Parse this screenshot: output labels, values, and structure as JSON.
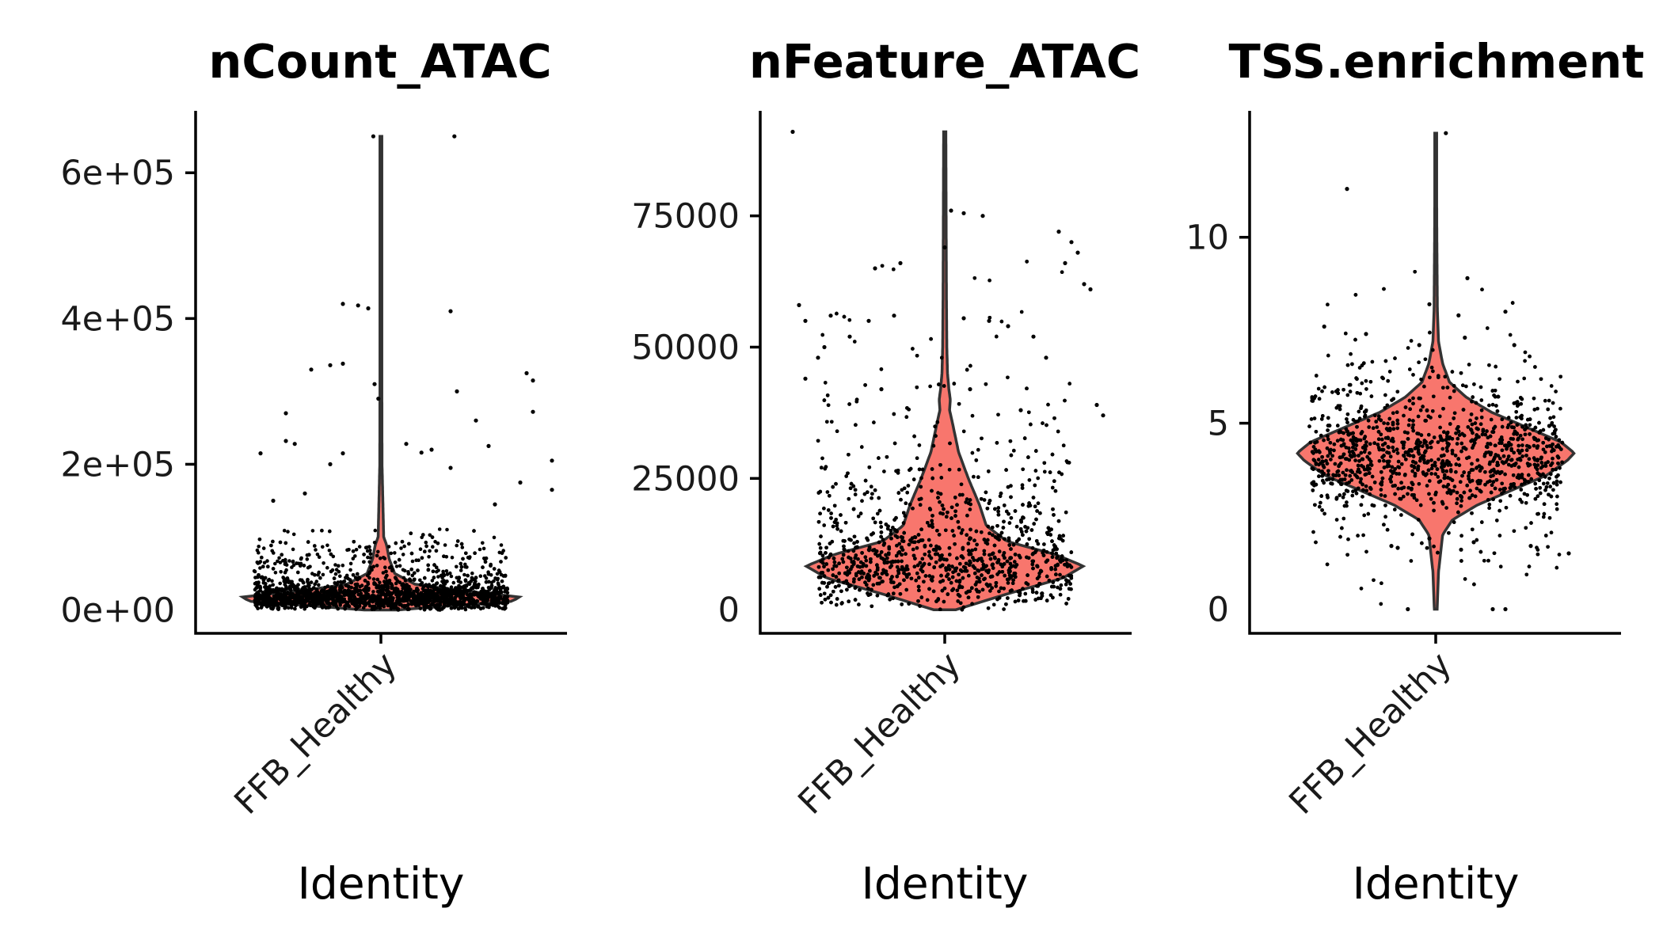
{
  "chart_data": [
    {
      "type": "violin",
      "title": "nCount_ATAC",
      "xlabel": "Identity",
      "ylabel": "",
      "categories": [
        "FFB_Healthy"
      ],
      "ylim": [
        -32000,
        685000
      ],
      "yticks": [
        0,
        200000,
        400000,
        600000
      ],
      "ytick_labels": [
        "0e+00",
        "2e+05",
        "4e+05",
        "6e+05"
      ],
      "fill_color": "#F8766D",
      "summary": {
        "min": 0,
        "median": 18000,
        "mode": 18000,
        "max": 650000
      },
      "density_profile": [
        [
          0,
          0.12
        ],
        [
          5000,
          0.45
        ],
        [
          12000,
          0.95
        ],
        [
          18000,
          1.0
        ],
        [
          26000,
          0.6
        ],
        [
          35000,
          0.25
        ],
        [
          50000,
          0.1
        ],
        [
          70000,
          0.06
        ],
        [
          90000,
          0.04
        ],
        [
          100000,
          0.02
        ],
        [
          200000,
          0.008
        ],
        [
          400000,
          0.006
        ],
        [
          650000,
          0.004
        ]
      ],
      "outlier_points": [
        [
          -0.06,
          650000
        ],
        [
          0.58,
          650000
        ],
        [
          -0.3,
          420000
        ],
        [
          -0.18,
          418000
        ],
        [
          -0.1,
          414000
        ],
        [
          0.55,
          410000
        ],
        [
          -0.55,
          330000
        ],
        [
          -0.3,
          338000
        ],
        [
          -0.4,
          336000
        ],
        [
          1.15,
          325000
        ],
        [
          1.2,
          315000
        ],
        [
          0.6,
          300000
        ],
        [
          -0.05,
          310000
        ],
        [
          -0.02,
          290000
        ],
        [
          0.75,
          260000
        ],
        [
          -0.75,
          270000
        ],
        [
          1.2,
          272000
        ],
        [
          -0.95,
          215000
        ],
        [
          -0.75,
          232000
        ],
        [
          -0.68,
          228000
        ],
        [
          0.85,
          225000
        ],
        [
          1.35,
          205000
        ],
        [
          0.4,
          220000
        ],
        [
          0.32,
          216000
        ],
        [
          0.2,
          228000
        ],
        [
          -0.4,
          200000
        ],
        [
          -0.3,
          215000
        ],
        [
          -0.85,
          150000
        ],
        [
          1.1,
          175000
        ],
        [
          0.55,
          195000
        ],
        [
          1.35,
          165000
        ],
        [
          0.9,
          145000
        ],
        [
          -0.6,
          160000
        ]
      ]
    },
    {
      "type": "violin",
      "title": "nFeature_ATAC",
      "xlabel": "Identity",
      "ylabel": "",
      "categories": [
        "FFB_Healthy"
      ],
      "ylim": [
        -4500,
        95000
      ],
      "yticks": [
        0,
        25000,
        50000,
        75000
      ],
      "ytick_labels": [
        "0",
        "25000",
        "50000",
        "75000"
      ],
      "fill_color": "#F8766D",
      "summary": {
        "min": 0,
        "median": 8500,
        "mode": 8300,
        "max": 91000
      },
      "density_profile": [
        [
          0,
          0.08
        ],
        [
          3000,
          0.45
        ],
        [
          6000,
          0.85
        ],
        [
          8300,
          1.0
        ],
        [
          10500,
          0.8
        ],
        [
          13000,
          0.45
        ],
        [
          16000,
          0.3
        ],
        [
          20000,
          0.25
        ],
        [
          25000,
          0.17
        ],
        [
          30000,
          0.1
        ],
        [
          35000,
          0.06
        ],
        [
          38000,
          0.035
        ],
        [
          40000,
          0.04
        ],
        [
          42000,
          0.03
        ],
        [
          45000,
          0.02
        ],
        [
          50000,
          0.015
        ],
        [
          60000,
          0.012
        ],
        [
          75000,
          0.01
        ],
        [
          91000,
          0.008
        ]
      ],
      "outlier_points": [
        [
          -1.2,
          91000
        ],
        [
          0.05,
          76000
        ],
        [
          0.15,
          75500
        ],
        [
          0.3,
          75000
        ],
        [
          0.0,
          69000
        ],
        [
          0.9,
          72000
        ],
        [
          1.0,
          70000
        ],
        [
          1.05,
          68000
        ],
        [
          0.95,
          66000
        ],
        [
          1.1,
          62000
        ],
        [
          1.15,
          61000
        ],
        [
          -0.55,
          65000
        ],
        [
          -0.35,
          66000
        ],
        [
          -0.9,
          56000
        ],
        [
          -1.15,
          58000
        ],
        [
          -1.1,
          55000
        ],
        [
          -0.6,
          55000
        ],
        [
          -0.4,
          56000
        ],
        [
          0.15,
          55500
        ],
        [
          0.35,
          55000
        ],
        [
          0.5,
          54000
        ],
        [
          -0.75,
          52000
        ],
        [
          -0.95,
          50000
        ],
        [
          -1.0,
          48000
        ],
        [
          0.7,
          52000
        ],
        [
          0.8,
          48000
        ],
        [
          -1.1,
          44000
        ],
        [
          1.2,
          39000
        ],
        [
          1.25,
          37000
        ],
        [
          -0.5,
          42000
        ],
        [
          0.2,
          42000
        ],
        [
          0.6,
          38000
        ]
      ]
    },
    {
      "type": "violin",
      "title": "TSS.enrichment",
      "xlabel": "Identity",
      "ylabel": "",
      "categories": [
        "FFB_Healthy"
      ],
      "ylim": [
        -0.65,
        13.4
      ],
      "yticks": [
        0,
        5,
        10
      ],
      "ytick_labels": [
        "0",
        "5",
        "10"
      ],
      "fill_color": "#F8766D",
      "summary": {
        "min": 0,
        "median": 4.2,
        "mode": 4.2,
        "max": 12.8
      },
      "density_profile": [
        [
          0,
          0.01
        ],
        [
          1,
          0.02
        ],
        [
          2,
          0.05
        ],
        [
          2.4,
          0.12
        ],
        [
          2.8,
          0.3
        ],
        [
          3.2,
          0.55
        ],
        [
          3.6,
          0.8
        ],
        [
          4,
          0.95
        ],
        [
          4.2,
          1.0
        ],
        [
          4.5,
          0.9
        ],
        [
          4.9,
          0.65
        ],
        [
          5.3,
          0.4
        ],
        [
          5.7,
          0.22
        ],
        [
          6.1,
          0.1
        ],
        [
          6.6,
          0.05
        ],
        [
          7.2,
          0.02
        ],
        [
          8,
          0.012
        ],
        [
          10,
          0.008
        ],
        [
          12.8,
          0.005
        ]
      ],
      "outlier_points": [
        [
          0.08,
          12.8
        ],
        [
          -0.7,
          11.3
        ],
        [
          0.25,
          8.9
        ],
        [
          0.55,
          8.0
        ],
        [
          0.18,
          7.9
        ],
        [
          0.23,
          7.3
        ],
        [
          -0.55,
          7.4
        ],
        [
          -0.13,
          7.1
        ],
        [
          -0.05,
          8.2
        ],
        [
          -0.88,
          7.6
        ],
        [
          0.62,
          7.1
        ],
        [
          -0.22,
          0.0
        ],
        [
          0.45,
          0.0
        ],
        [
          0.55,
          0.0
        ],
        [
          -0.35,
          1.7
        ],
        [
          -0.05,
          1.9
        ],
        [
          0.2,
          1.6
        ],
        [
          0.3,
          1.8
        ],
        [
          0.75,
          1.7
        ],
        [
          1.05,
          1.5
        ],
        [
          -0.3,
          1.65
        ]
      ]
    }
  ]
}
